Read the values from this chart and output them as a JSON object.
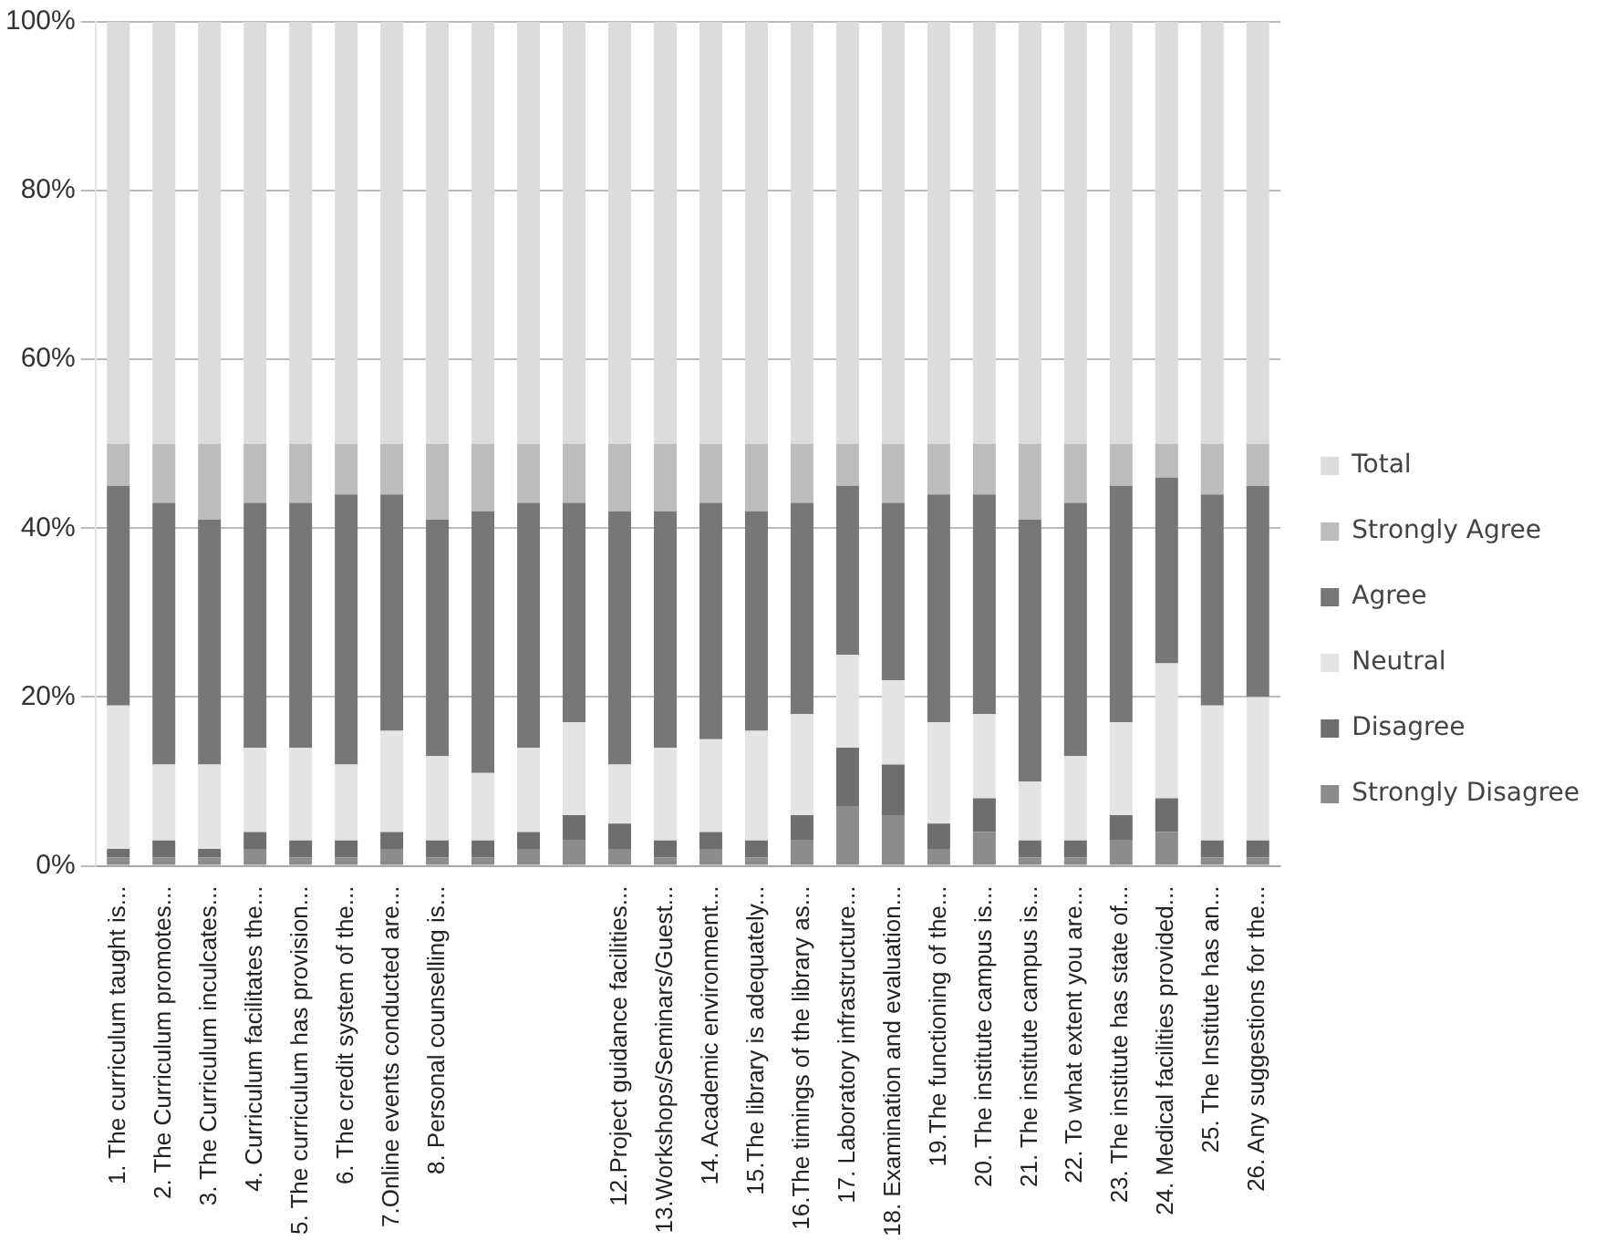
{
  "chart_data": {
    "type": "bar",
    "stacked": true,
    "categories": [
      "1. The curriculum taught is...",
      "2. The Curriculum promotes...",
      "3. The Curriculum inculcates...",
      "4. Curriculum facilitates the...",
      "5. The curriculum has provision...",
      "6. The credit system of the...",
      "7.Online events conducted are...",
      "8. Personal counselling is...",
      null,
      null,
      null,
      "12.Project guidance facilities...",
      "13.Workshops/Seminars/Guest...",
      "14. Academic environment...",
      "15.The library is adequately...",
      "16.The timings of the library as...",
      "17. Laboratory infrastructure...",
      "18. Examination and evaluation...",
      "19.The functioning of the...",
      "20. The institute campus is...",
      "21. The institute campus is...",
      "22. To what extent you are...",
      "23. The institute has state of...",
      "24. Medical facilities provided...",
      "25. The Institute has an...",
      "26. Any suggestions for the..."
    ],
    "series": [
      {
        "name": "Strongly Disagree",
        "color": "#8c8c8c",
        "values": [
          1,
          1,
          1,
          2,
          1,
          1,
          2,
          1,
          1,
          2,
          3,
          2,
          1,
          2,
          1,
          3,
          7,
          6,
          2,
          4,
          1,
          1,
          3,
          4,
          1,
          1
        ]
      },
      {
        "name": "Disagree",
        "color": "#6e6e6e",
        "values": [
          1,
          2,
          1,
          2,
          2,
          2,
          2,
          2,
          2,
          2,
          3,
          3,
          2,
          2,
          2,
          3,
          7,
          6,
          3,
          4,
          2,
          2,
          3,
          4,
          2,
          2
        ]
      },
      {
        "name": "Neutral",
        "color": "#e4e4e4",
        "values": [
          17,
          9,
          10,
          10,
          11,
          9,
          12,
          10,
          8,
          10,
          11,
          7,
          11,
          11,
          13,
          12,
          11,
          10,
          12,
          10,
          7,
          10,
          11,
          16,
          16,
          17
        ]
      },
      {
        "name": "Agree",
        "color": "#777777",
        "values": [
          26,
          31,
          29,
          29,
          29,
          32,
          28,
          28,
          31,
          29,
          26,
          30,
          28,
          28,
          26,
          25,
          20,
          21,
          27,
          26,
          31,
          30,
          28,
          22,
          25,
          25
        ]
      },
      {
        "name": "Strongly Agree",
        "color": "#bcbcbc",
        "values": [
          5,
          7,
          9,
          7,
          7,
          6,
          6,
          9,
          8,
          7,
          7,
          8,
          8,
          7,
          8,
          7,
          5,
          7,
          6,
          6,
          9,
          7,
          5,
          4,
          6,
          5
        ]
      },
      {
        "name": "Total",
        "color": "#dcdcdc",
        "values": [
          50,
          50,
          50,
          50,
          50,
          50,
          50,
          50,
          50,
          50,
          50,
          50,
          50,
          50,
          50,
          50,
          50,
          50,
          50,
          50,
          50,
          50,
          50,
          50,
          50,
          50
        ]
      }
    ],
    "ylim": [
      0,
      100
    ],
    "yticks": [
      {
        "value": 0,
        "label": "0%"
      },
      {
        "value": 20,
        "label": "20%"
      },
      {
        "value": 40,
        "label": "40%"
      },
      {
        "value": 60,
        "label": "60%"
      },
      {
        "value": 80,
        "label": "80%"
      },
      {
        "value": 100,
        "label": "100%"
      }
    ],
    "grid": "y",
    "legend": "right"
  }
}
